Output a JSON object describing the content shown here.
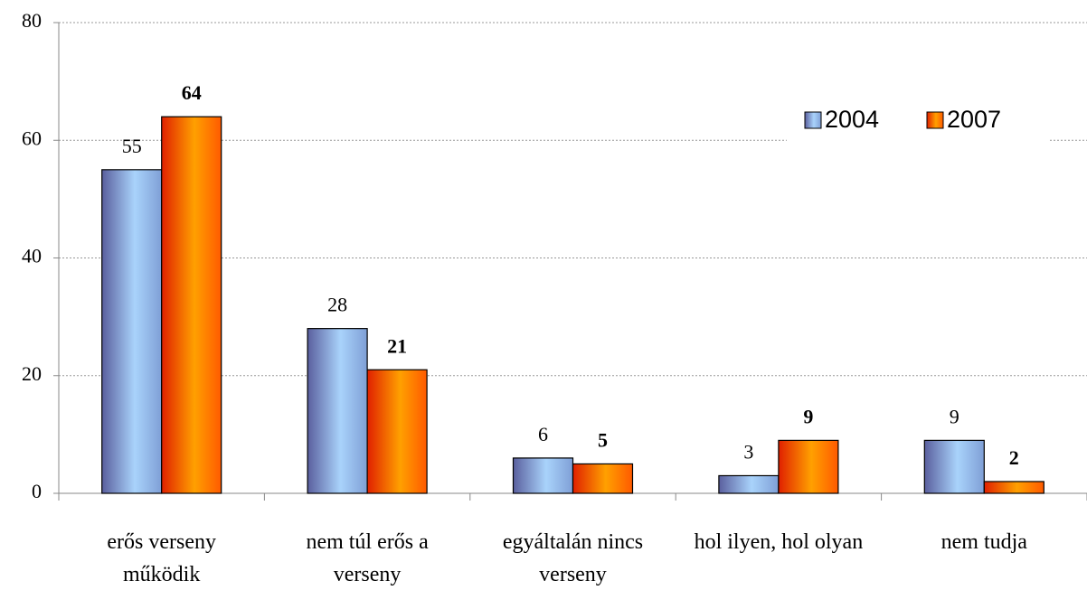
{
  "chart_data": {
    "type": "bar",
    "categories": [
      "erős verseny működik",
      "nem túl erős a verseny",
      "egyáltalán nincs verseny",
      "hol ilyen, hol olyan",
      "nem tudja"
    ],
    "series": [
      {
        "name": "2004",
        "color": "#8fb4ec",
        "values": [
          55,
          28,
          6,
          3,
          9
        ]
      },
      {
        "name": "2007",
        "color": "#ff7a00",
        "values": [
          64,
          21,
          5,
          9,
          2
        ]
      }
    ],
    "ylim": [
      0,
      80
    ],
    "yticks": [
      0,
      20,
      40,
      60,
      80
    ],
    "grid": true,
    "legend": "upper right"
  }
}
